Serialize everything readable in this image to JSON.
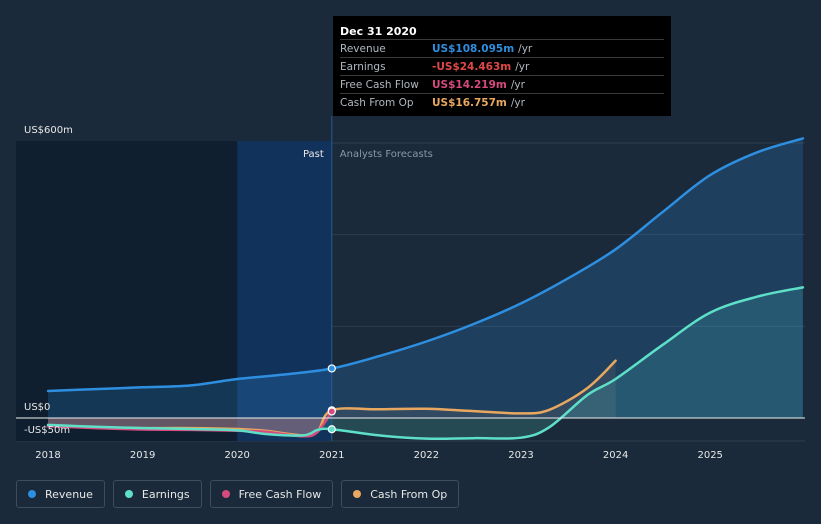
{
  "chart_data": {
    "type": "area",
    "y_axis_labels": {
      "top": "US$600m",
      "zero": "US$0",
      "bottom": "-US$50m"
    },
    "ylim": [
      -50,
      600
    ],
    "x_ticks": [
      "2018",
      "2019",
      "2020",
      "2021",
      "2022",
      "2023",
      "2024",
      "2025"
    ],
    "regions": {
      "past": "Past",
      "forecast": "Analysts Forecasts"
    },
    "divider_x": 2021.0,
    "highlight_range": [
      2020.0,
      2021.0
    ],
    "series": [
      {
        "name": "Revenue",
        "color": "#2e8fe0",
        "points": [
          [
            2018.0,
            59
          ],
          [
            2018.5,
            63
          ],
          [
            2019.0,
            67
          ],
          [
            2019.5,
            71
          ],
          [
            2020.0,
            85
          ],
          [
            2020.5,
            95
          ],
          [
            2021.0,
            108.1
          ],
          [
            2021.5,
            135
          ],
          [
            2022.0,
            167
          ],
          [
            2022.5,
            205
          ],
          [
            2023.0,
            250
          ],
          [
            2023.5,
            305
          ],
          [
            2024.0,
            368
          ],
          [
            2024.5,
            450
          ],
          [
            2025.0,
            530
          ],
          [
            2025.5,
            580
          ],
          [
            2025.98,
            610
          ]
        ]
      },
      {
        "name": "Earnings",
        "color": "#5ee0c8",
        "points": [
          [
            2018.0,
            -15
          ],
          [
            2018.5,
            -19
          ],
          [
            2019.0,
            -22
          ],
          [
            2019.5,
            -24
          ],
          [
            2020.0,
            -27
          ],
          [
            2020.3,
            -35
          ],
          [
            2020.7,
            -38
          ],
          [
            2020.85,
            -26
          ],
          [
            2021.0,
            -24.5
          ],
          [
            2021.5,
            -38
          ],
          [
            2022.0,
            -45
          ],
          [
            2022.5,
            -44
          ],
          [
            2023.0,
            -43
          ],
          [
            2023.3,
            -20
          ],
          [
            2023.7,
            50
          ],
          [
            2024.0,
            85
          ],
          [
            2024.5,
            160
          ],
          [
            2025.0,
            230
          ],
          [
            2025.5,
            265
          ],
          [
            2025.98,
            285
          ]
        ]
      },
      {
        "name": "Free Cash Flow",
        "color": "#d64a7e",
        "points": [
          [
            2018.0,
            -18
          ],
          [
            2018.5,
            -22
          ],
          [
            2019.0,
            -25
          ],
          [
            2019.5,
            -26
          ],
          [
            2020.0,
            -28
          ],
          [
            2020.3,
            -30
          ],
          [
            2020.7,
            -40
          ],
          [
            2020.85,
            -30
          ],
          [
            2021.0,
            14.2
          ]
        ]
      },
      {
        "name": "Cash From Op",
        "color": "#e8a860",
        "points": [
          [
            2018.0,
            -17
          ],
          [
            2018.5,
            -20
          ],
          [
            2019.0,
            -22
          ],
          [
            2019.5,
            -22
          ],
          [
            2020.0,
            -24
          ],
          [
            2020.3,
            -28
          ],
          [
            2020.7,
            -38
          ],
          [
            2020.85,
            -30
          ],
          [
            2021.0,
            16.8
          ],
          [
            2021.5,
            19
          ],
          [
            2022.0,
            20
          ],
          [
            2022.5,
            15
          ],
          [
            2023.0,
            10
          ],
          [
            2023.3,
            18
          ],
          [
            2023.7,
            65
          ],
          [
            2024.0,
            125
          ]
        ]
      }
    ]
  },
  "tooltip": {
    "date": "Dec 31 2020",
    "rows": [
      {
        "label": "Revenue",
        "value": "US$108.095m",
        "unit": "/yr",
        "color": "#2e8fe0"
      },
      {
        "label": "Earnings",
        "value": "-US$24.463m",
        "unit": "/yr",
        "color": "#e04848"
      },
      {
        "label": "Free Cash Flow",
        "value": "US$14.219m",
        "unit": "/yr",
        "color": "#d64a7e"
      },
      {
        "label": "Cash From Op",
        "value": "US$16.757m",
        "unit": "/yr",
        "color": "#e8a860"
      }
    ]
  },
  "legend": [
    {
      "label": "Revenue",
      "color": "#2e8fe0"
    },
    {
      "label": "Earnings",
      "color": "#5ee0c8"
    },
    {
      "label": "Free Cash Flow",
      "color": "#d64a7e"
    },
    {
      "label": "Cash From Op",
      "color": "#e8a860"
    }
  ]
}
